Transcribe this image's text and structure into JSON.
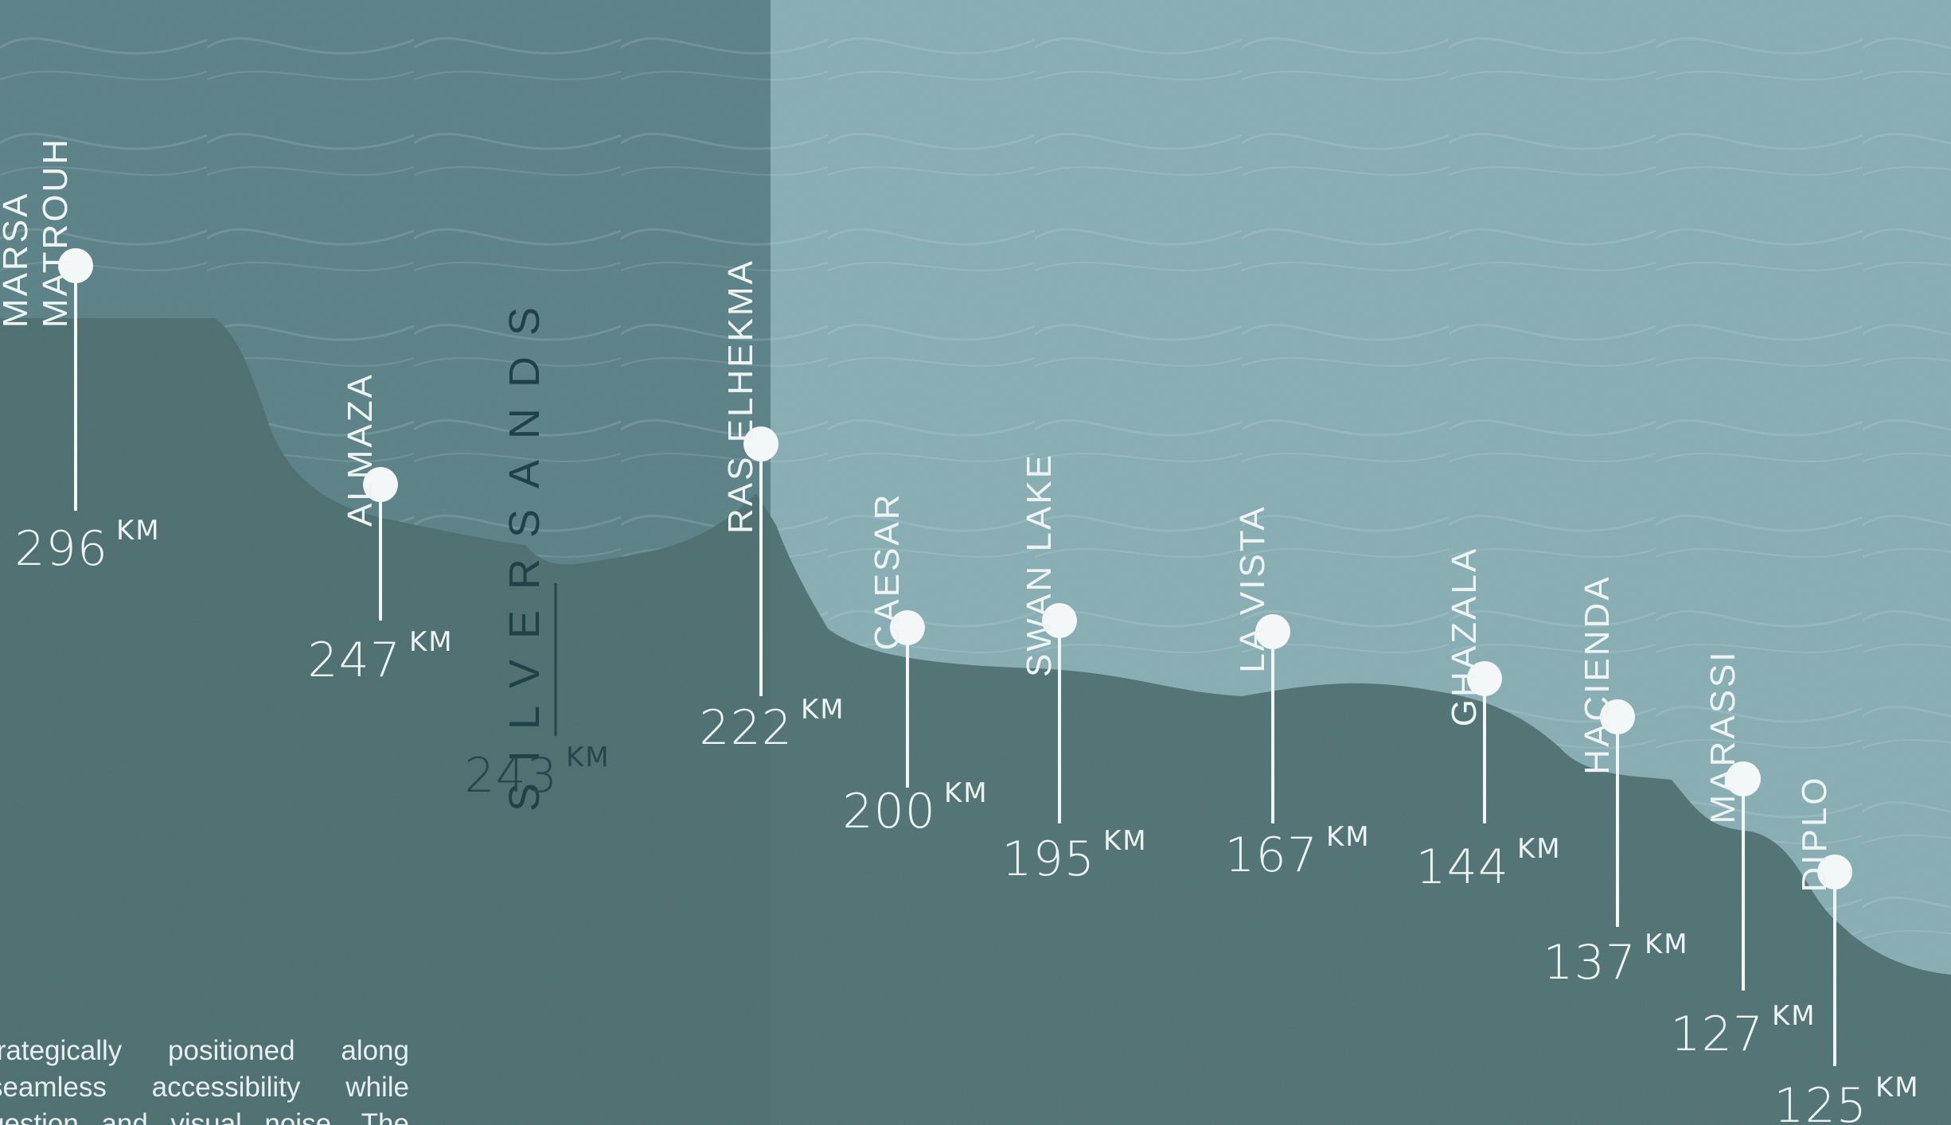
{
  "brand": "SILVERSANDS",
  "markers": [
    {
      "name": "MARSA\nMATROUH",
      "km": "296",
      "unit": "KM"
    },
    {
      "name": "ALMAZA",
      "km": "247",
      "unit": "KM"
    },
    {
      "name": "RAS ELHEKMA",
      "km": "222",
      "unit": "KM"
    },
    {
      "name": "CAESAR",
      "km": "200",
      "unit": "KM"
    },
    {
      "name": "SWAN LAKE",
      "km": "195",
      "unit": "KM"
    },
    {
      "name": "LA VISTA",
      "km": "167",
      "unit": "KM"
    },
    {
      "name": "GHAZALA",
      "km": "144",
      "unit": "KM"
    },
    {
      "name": "HACIENDA",
      "km": "137",
      "unit": "KM"
    },
    {
      "name": "MARASSI",
      "km": "127",
      "unit": "KM"
    },
    {
      "name": "DIPLO",
      "km": "125",
      "unit": "KM"
    }
  ],
  "project": {
    "km": "243",
    "unit": "KM"
  },
  "intro_lines": [
    "trategically  positioned  along",
    "seamless  accessibility  while",
    "gestion  and  visual  noise.  The"
  ],
  "colors": {
    "sea": "#5f878c",
    "sea_light": "#86adb3",
    "land": "#4f7173",
    "text": "#eef4f4",
    "brand": "#1f4246"
  }
}
